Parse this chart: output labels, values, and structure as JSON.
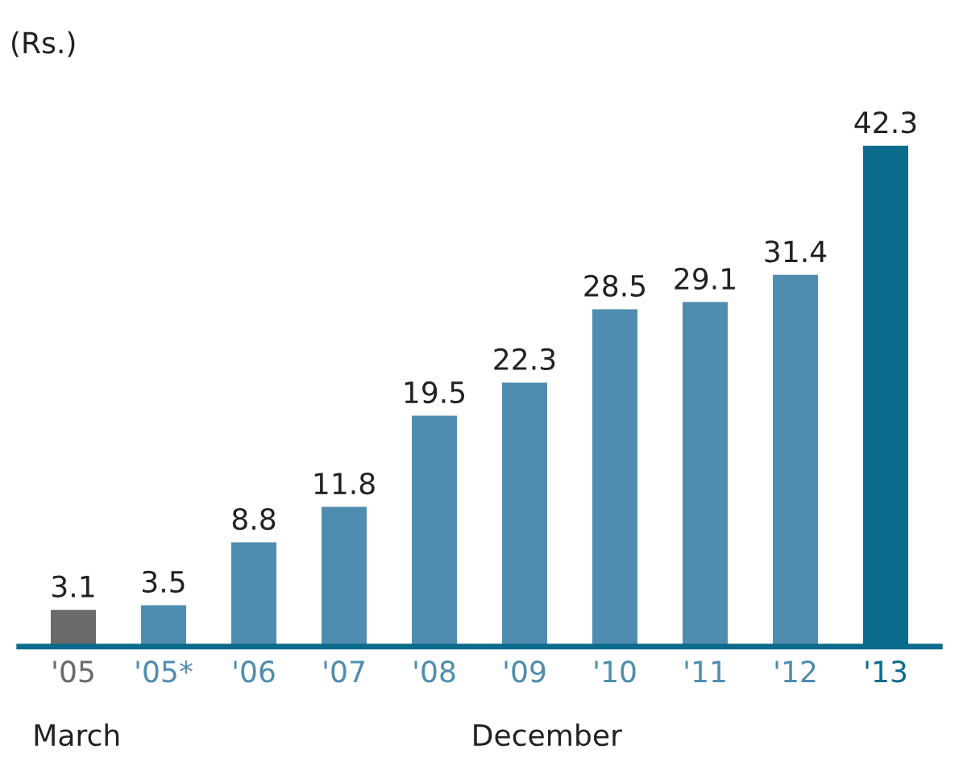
{
  "chart_data": {
    "type": "bar",
    "ylabel": "(Rs.)",
    "categories": [
      "'05",
      "'05*",
      "'06",
      "'07",
      "'08",
      "'09",
      "'10",
      "'11",
      "'12",
      "'13"
    ],
    "values": [
      3.1,
      3.5,
      8.8,
      11.8,
      19.5,
      22.3,
      28.5,
      29.1,
      31.4,
      42.3
    ],
    "colors": [
      "#6a6a6a",
      "#4f8db0",
      "#4f8db0",
      "#4f8db0",
      "#4f8db0",
      "#4f8db0",
      "#4f8db0",
      "#4f8db0",
      "#4f8db0",
      "#0a6b8c"
    ],
    "data_labels": true,
    "grid": false,
    "legend": false,
    "tick_labels": "x",
    "annotations": [
      "March",
      "December"
    ]
  }
}
